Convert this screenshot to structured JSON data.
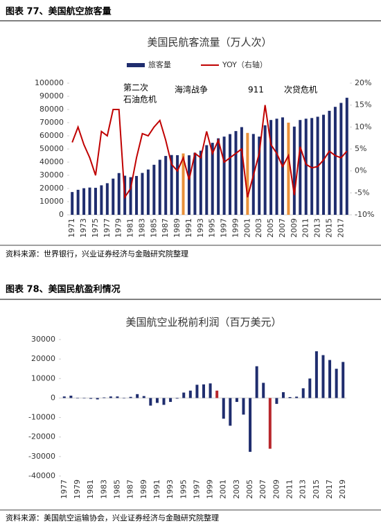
{
  "headings": [
    "图表 77、美国航空旅客量",
    "图表 78、美国民航盈利情况"
  ],
  "sources": [
    "资料来源：世界银行，兴业证券经济与金融研究院整理",
    "资料来源：美国航空运输协会，兴业证券经济与金融研究院整理"
  ],
  "chart_data": [
    {
      "type": "bar",
      "title": "美国民航客流量（万人次）",
      "annotations": [
        [
          "第二次",
          "石油危机"
        ],
        [
          "海湾战争"
        ],
        [
          "911"
        ],
        [
          "次贷危机"
        ]
      ],
      "categories": [
        "1971",
        null,
        "1973",
        null,
        "1975",
        null,
        "1977",
        null,
        "1979",
        null,
        "1981",
        null,
        "1983",
        null,
        "1985",
        null,
        "1987",
        null,
        "1989",
        null,
        "1991",
        null,
        "1993",
        null,
        "1995",
        null,
        "1997",
        null,
        "1999",
        null,
        "2001",
        null,
        "2003",
        null,
        "2005",
        null,
        "2007",
        null,
        "2009",
        null,
        "2011",
        null,
        "2013",
        null,
        "2015",
        null,
        "2017",
        null
      ],
      "series": [
        {
          "name": "旅客量",
          "type": "bar",
          "color": "#1f2d6e",
          "colors": [
            "#1f2d6e",
            "#1f2d6e",
            "#1f2d6e",
            "#1f2d6e",
            "#1f2d6e",
            "#1f2d6e",
            "#1f2d6e",
            "#1f2d6e",
            "#1f2d6e",
            "#1f2d6e",
            "#1f2d6e",
            "#1f2d6e",
            "#1f2d6e",
            "#1f2d6e",
            "#1f2d6e",
            "#1f2d6e",
            "#1f2d6e",
            "#1f2d6e",
            "#1f2d6e",
            "#e8903a",
            "#1f2d6e",
            "#1f2d6e",
            "#1f2d6e",
            "#1f2d6e",
            "#1f2d6e",
            "#1f2d6e",
            "#1f2d6e",
            "#1f2d6e",
            "#1f2d6e",
            "#1f2d6e",
            "#e8903a",
            "#1f2d6e",
            "#1f2d6e",
            "#1f2d6e",
            "#1f2d6e",
            "#1f2d6e",
            "#1f2d6e",
            "#e8903a",
            "#1f2d6e",
            "#1f2d6e",
            "#1f2d6e",
            "#1f2d6e",
            "#1f2d6e",
            "#1f2d6e",
            "#1f2d6e",
            "#1f2d6e",
            "#1f2d6e",
            "#1f2d6e"
          ],
          "values": [
            17300,
            19000,
            20200,
            20700,
            20500,
            22400,
            24000,
            27500,
            31700,
            29700,
            28600,
            29500,
            31800,
            34400,
            38000,
            41800,
            44700,
            45400,
            45300,
            46600,
            45200,
            47100,
            48700,
            52900,
            54700,
            58100,
            59400,
            61300,
            63600,
            66600,
            62200,
            61400,
            59400,
            68000,
            72000,
            73000,
            74000,
            70000,
            67000,
            72000,
            73000,
            73500,
            74500,
            76000,
            79000,
            82000,
            85000,
            88900
          ]
        },
        {
          "name": "YOY（右轴）",
          "type": "line",
          "axis": "y2",
          "color": "#c00000",
          "values": [
            6.5,
            10,
            6,
            3,
            -1,
            9,
            8,
            14,
            14,
            -6,
            -4,
            3,
            8.5,
            8,
            10,
            11.5,
            7,
            1.5,
            0,
            3,
            -2,
            4,
            3,
            9,
            4,
            7,
            2,
            3,
            4,
            5,
            -6,
            -1,
            4,
            15,
            6,
            4,
            1,
            3.5,
            -5.5,
            5.5,
            1.5,
            0.7,
            1,
            2.5,
            4.5,
            3.5,
            3,
            4.5
          ]
        }
      ],
      "ylim": [
        0,
        100000
      ],
      "yticks": [
        0,
        10000,
        20000,
        30000,
        40000,
        50000,
        60000,
        70000,
        80000,
        90000,
        100000
      ],
      "y2lim": [
        -10,
        20
      ],
      "y2ticks": [
        {
          "value": -10,
          "label": "-10%"
        },
        {
          "value": -5,
          "label": "-5%"
        },
        {
          "value": 0,
          "label": "0%"
        },
        {
          "value": 5,
          "label": "5%"
        },
        {
          "value": 10,
          "label": "10%"
        },
        {
          "value": 15,
          "label": "15%"
        },
        {
          "value": 20,
          "label": "20%"
        }
      ],
      "legend": "top"
    },
    {
      "type": "bar",
      "title": "美国航空业税前利润（百万美元）",
      "categories": [
        "1977",
        null,
        "1979",
        null,
        "1981",
        null,
        "1983",
        null,
        "1985",
        null,
        "1987",
        null,
        "1989",
        null,
        "1991",
        null,
        "1993",
        null,
        "1995",
        null,
        "1997",
        null,
        "1999",
        null,
        "2001",
        null,
        "2003",
        null,
        "2005",
        null,
        "2007",
        null,
        "2009",
        null,
        "2011",
        null,
        "2013",
        null,
        "2015",
        null,
        "2017",
        null,
        "2019"
      ],
      "color": "#1f2d6e",
      "colors": [
        "#1f2d6e",
        "#1f2d6e",
        "#1f2d6e",
        "#1f2d6e",
        "#1f2d6e",
        "#1f2d6e",
        "#1f2d6e",
        "#1f2d6e",
        "#1f2d6e",
        "#1f2d6e",
        "#1f2d6e",
        "#1f2d6e",
        "#1f2d6e",
        "#1f2d6e",
        "#1f2d6e",
        "#1f2d6e",
        "#1f2d6e",
        "#1f2d6e",
        "#1f2d6e",
        "#1f2d6e",
        "#1f2d6e",
        "#1f2d6e",
        "#1f2d6e",
        "#b8272c",
        "#1f2d6e",
        "#1f2d6e",
        "#1f2d6e",
        "#1f2d6e",
        "#1f2d6e",
        "#1f2d6e",
        "#1f2d6e",
        "#b8272c",
        "#1f2d6e",
        "#1f2d6e",
        "#1f2d6e",
        "#1f2d6e",
        "#1f2d6e",
        "#1f2d6e",
        "#1f2d6e",
        "#1f2d6e",
        "#1f2d6e",
        "#1f2d6e",
        "#1f2d6e"
      ],
      "values": [
        800,
        1200,
        -200,
        -200,
        -400,
        -700,
        300,
        800,
        800,
        -200,
        600,
        2000,
        1000,
        -3900,
        -2500,
        -3500,
        -2000,
        -300,
        2800,
        3800,
        6800,
        7000,
        7500,
        3800,
        -10600,
        -14200,
        -2000,
        -8500,
        -27600,
        16300,
        7800,
        -26000,
        -3000,
        3000,
        500,
        700,
        5000,
        10000,
        24000,
        22000,
        19500,
        15000,
        18500
      ],
      "ylim": [
        -40000,
        30000
      ],
      "yticks": [
        -40000,
        -30000,
        -20000,
        -10000,
        0,
        10000,
        20000,
        30000
      ]
    }
  ]
}
